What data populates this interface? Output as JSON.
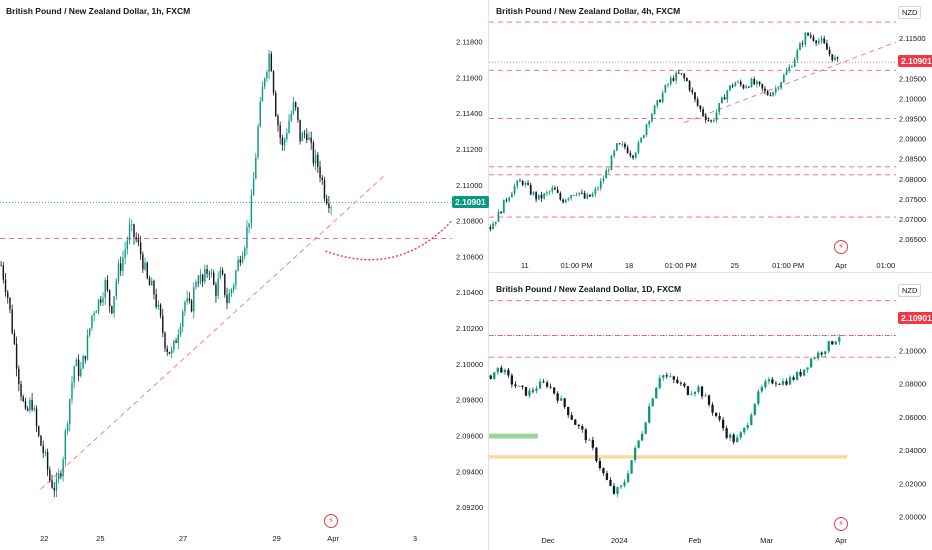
{
  "colors": {
    "up": "#089981",
    "down": "#131722",
    "accent_green": "#089981",
    "accent_red": "#f23645",
    "level": "#f23645"
  },
  "chart_data": [
    {
      "id": "h1",
      "type": "candlestick",
      "title": "British Pound / New Zealand Dollar, 1h, FXCM",
      "current_price": "2.10901",
      "currency": "",
      "ylim": [
        2.091,
        2.1192
      ],
      "y_ticks": [
        "2.11800",
        "2.11600",
        "2.11400",
        "2.11200",
        "2.11000",
        "2.10800",
        "2.10600",
        "2.10400",
        "2.10200",
        "2.10000",
        "2.09800",
        "2.09600",
        "2.09400",
        "2.09200"
      ],
      "x_ticks": [
        "22",
        "25",
        "27",
        "29",
        "Apr",
        "3"
      ],
      "close_path": [
        2.1055,
        2.104,
        2.1015,
        2.099,
        2.097,
        2.098,
        2.096,
        2.095,
        2.0935,
        2.093,
        2.0945,
        2.0975,
        2.1,
        2.0995,
        2.101,
        2.103,
        2.1035,
        2.1045,
        2.103,
        2.105,
        2.106,
        2.1075,
        2.107,
        2.106,
        2.1045,
        2.104,
        2.1025,
        2.101,
        2.1005,
        2.102,
        2.1035,
        2.103,
        2.105,
        2.1045,
        2.1055,
        2.104,
        2.105,
        2.1035,
        2.1045,
        2.106,
        2.107,
        2.109,
        2.113,
        2.116,
        2.1175,
        2.114,
        2.112,
        2.1135,
        2.1145,
        2.1125,
        2.113,
        2.1115,
        2.111,
        2.1095,
        2.109
      ],
      "levels": [
        2.107
      ],
      "trendline": [
        [
          0.09,
          2.093
        ],
        [
          0.85,
          2.1105
        ]
      ],
      "projection": [
        [
          0.72,
          2.1063
        ],
        [
          0.88,
          2.1059
        ],
        [
          1.0,
          2.108
        ]
      ]
    },
    {
      "id": "h4",
      "type": "candlestick",
      "title": "British Pound / New Zealand Dollar, 4h, FXCM",
      "current_price": "2.10901",
      "currency": "NZD",
      "ylim": [
        2.0628,
        2.12
      ],
      "y_ticks": [
        "2.11500",
        "2.11000",
        "2.10500",
        "2.10000",
        "2.09500",
        "2.09000",
        "2.08500",
        "2.08000",
        "2.07500",
        "2.07000",
        "2.06500"
      ],
      "x_ticks": [
        "11",
        "01:00 PM",
        "18",
        "01:00 PM",
        "25",
        "01:00 PM",
        "Apr",
        "01:00"
      ],
      "close_path": [
        2.068,
        2.071,
        2.075,
        2.078,
        2.0795,
        2.077,
        2.075,
        2.076,
        2.0775,
        2.0745,
        2.076,
        2.077,
        2.075,
        2.076,
        2.079,
        2.083,
        2.088,
        2.088,
        2.086,
        2.089,
        2.095,
        2.098,
        2.102,
        2.105,
        2.106,
        2.104,
        2.099,
        2.096,
        2.094,
        2.098,
        2.102,
        2.104,
        2.103,
        2.104,
        2.103,
        2.101,
        2.102,
        2.105,
        2.108,
        2.112,
        2.116,
        2.115,
        2.114,
        2.111,
        2.109
      ],
      "levels": [
        2.119,
        2.107,
        2.095,
        2.083,
        2.081,
        2.0705
      ],
      "trendline": [
        [
          0.48,
          2.094
        ],
        [
          1.0,
          2.114
        ]
      ]
    },
    {
      "id": "d1",
      "type": "candlestick",
      "title": "British Pound / New Zealand Dollar, 1D, FXCM",
      "current_price": "2.10901",
      "currency": "NZD",
      "ylim": [
        1.995,
        2.134
      ],
      "y_ticks": [
        "2.10000",
        "2.08000",
        "2.06000",
        "2.04000",
        "2.02000",
        "2.00000"
      ],
      "x_ticks": [
        "Dec",
        "2024",
        "Feb",
        "Mar",
        "Apr"
      ],
      "close_path": [
        2.085,
        2.09,
        2.082,
        2.077,
        2.074,
        2.079,
        2.08,
        2.073,
        2.065,
        2.056,
        2.049,
        2.038,
        2.025,
        2.014,
        2.018,
        2.035,
        2.05,
        2.07,
        2.086,
        2.083,
        2.08,
        2.075,
        2.078,
        2.069,
        2.06,
        2.05,
        2.045,
        2.053,
        2.069,
        2.079,
        2.082,
        2.081,
        2.083,
        2.087,
        2.095,
        2.099,
        2.104,
        2.109
      ],
      "levels": [
        2.13,
        2.109,
        2.096
      ],
      "zones": [
        {
          "y": [
            2.05,
            2.047
          ],
          "x": [
            0,
            0.12
          ],
          "color": "#4caf50"
        },
        {
          "y": [
            2.037,
            2.035
          ],
          "x": [
            0,
            0.88
          ],
          "color": "#ffb74d"
        }
      ]
    }
  ]
}
